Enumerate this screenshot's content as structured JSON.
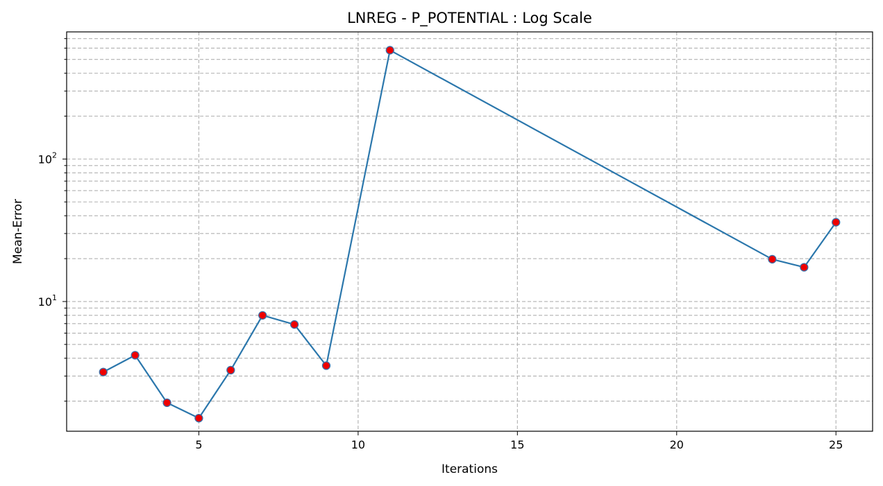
{
  "chart_data": {
    "type": "line",
    "title": "LNREG - P_POTENTIAL : Log Scale",
    "xlabel": "Iterations",
    "ylabel": "Mean-Error",
    "yscale": "log",
    "xlim": [
      0.85,
      26.15
    ],
    "ylim": [
      1.23,
      780
    ],
    "xticks": [
      5,
      10,
      15,
      20,
      25
    ],
    "yticks_major": [
      10,
      100
    ],
    "ytick_labels": [
      {
        "base": "10",
        "exp": "1"
      },
      {
        "base": "10",
        "exp": "2"
      }
    ],
    "grid": true,
    "series": [
      {
        "x": [
          2,
          3,
          4,
          5,
          6,
          7,
          8,
          9,
          11,
          23,
          24,
          25
        ],
        "y": [
          3.2,
          4.2,
          1.95,
          1.52,
          3.3,
          8.0,
          6.9,
          3.55,
          580,
          19.8,
          17.4,
          36
        ],
        "line_color": "#2b77ac",
        "marker_fill": "#ee0000",
        "marker_edge": "#3d6fa8"
      }
    ]
  }
}
